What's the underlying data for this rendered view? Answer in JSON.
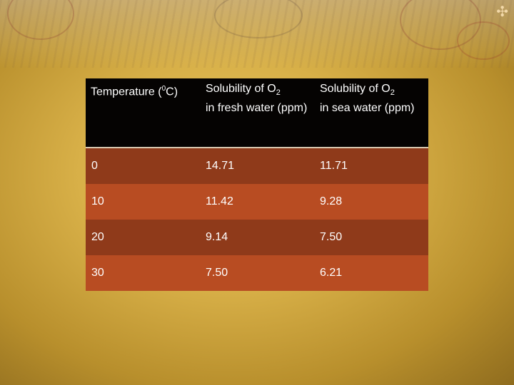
{
  "table": {
    "headers": [
      {
        "pre": "Temperature (",
        "sup": "0",
        "post": "C)"
      },
      {
        "line1": "Solubility of O",
        "sub": "2",
        "rest": "in fresh water (ppm)"
      },
      {
        "line1": "Solubility of O",
        "sub": "2",
        "rest": "in sea water (ppm)"
      }
    ],
    "rows": [
      [
        "0",
        "14.71",
        "11.71"
      ],
      [
        "10",
        "11.42",
        "9.28"
      ],
      [
        "20",
        "9.14",
        "7.50"
      ],
      [
        "30",
        "7.50",
        "6.21"
      ]
    ]
  },
  "colors": {
    "header_bg": "#050302",
    "row_dark": "#8f3a1a",
    "row_light": "#b84c22",
    "slide_bg": "#d8b048"
  },
  "decor": {
    "corner_mark": "✣"
  }
}
